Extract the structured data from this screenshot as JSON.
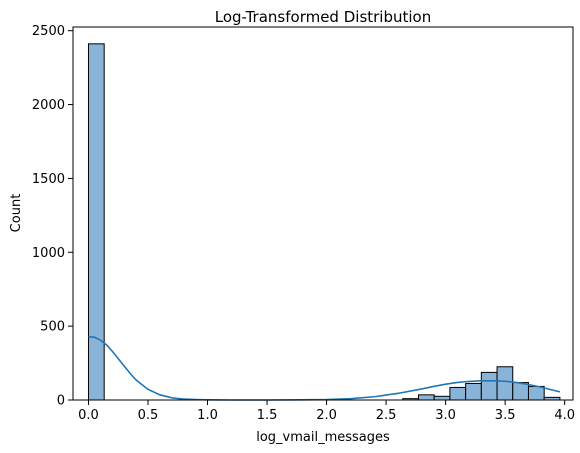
{
  "chart_data": {
    "type": "bar",
    "subtype": "histogram-with-kde",
    "title": "Log-Transformed Distribution",
    "xlabel": "log_vmail_messages",
    "ylabel": "Count",
    "xlim": [
      -0.13,
      4.07
    ],
    "ylim": [
      0,
      2525
    ],
    "x_ticks": [
      0.0,
      0.5,
      1.0,
      1.5,
      2.0,
      2.5,
      3.0,
      3.5,
      4.0
    ],
    "x_tick_labels": [
      "0.0",
      "0.5",
      "1.0",
      "1.5",
      "2.0",
      "2.5",
      "3.0",
      "3.5",
      "4.0"
    ],
    "y_ticks": [
      0,
      500,
      1000,
      1500,
      2000,
      2500
    ],
    "y_tick_labels": [
      "0",
      "500",
      "1000",
      "1500",
      "2000",
      "2500"
    ],
    "grid": false,
    "legend": "none",
    "bins": [
      {
        "x0": 0.0,
        "x1": 0.132,
        "count": 2411
      },
      {
        "x0": 2.64,
        "x1": 2.772,
        "count": 9
      },
      {
        "x0": 2.772,
        "x1": 2.904,
        "count": 35
      },
      {
        "x0": 2.904,
        "x1": 3.036,
        "count": 25
      },
      {
        "x0": 3.036,
        "x1": 3.168,
        "count": 85
      },
      {
        "x0": 3.168,
        "x1": 3.3,
        "count": 112
      },
      {
        "x0": 3.3,
        "x1": 3.432,
        "count": 187
      },
      {
        "x0": 3.432,
        "x1": 3.564,
        "count": 225
      },
      {
        "x0": 3.564,
        "x1": 3.696,
        "count": 118
      },
      {
        "x0": 3.696,
        "x1": 3.828,
        "count": 92
      },
      {
        "x0": 3.828,
        "x1": 3.96,
        "count": 18
      }
    ],
    "kde": {
      "x": [
        0.0,
        0.05,
        0.1,
        0.15,
        0.2,
        0.25,
        0.3,
        0.35,
        0.4,
        0.5,
        0.6,
        0.7,
        0.8,
        0.9,
        1.0,
        1.2,
        1.5,
        1.8,
        2.0,
        2.2,
        2.4,
        2.6,
        2.8,
        2.9,
        3.0,
        3.1,
        3.2,
        3.3,
        3.4,
        3.5,
        3.6,
        3.7,
        3.8,
        3.9,
        3.96
      ],
      "y": [
        428,
        425,
        405,
        375,
        330,
        280,
        230,
        180,
        135,
        72,
        35,
        15,
        6,
        3,
        1,
        0,
        0,
        1,
        3,
        9,
        22,
        45,
        75,
        92,
        107,
        119,
        126,
        130,
        130,
        127,
        118,
        104,
        87,
        67,
        55
      ]
    },
    "colors": {
      "bar_fill": "#89b3d7",
      "bar_edge": "#000000",
      "kde": "#1f77b4"
    }
  }
}
